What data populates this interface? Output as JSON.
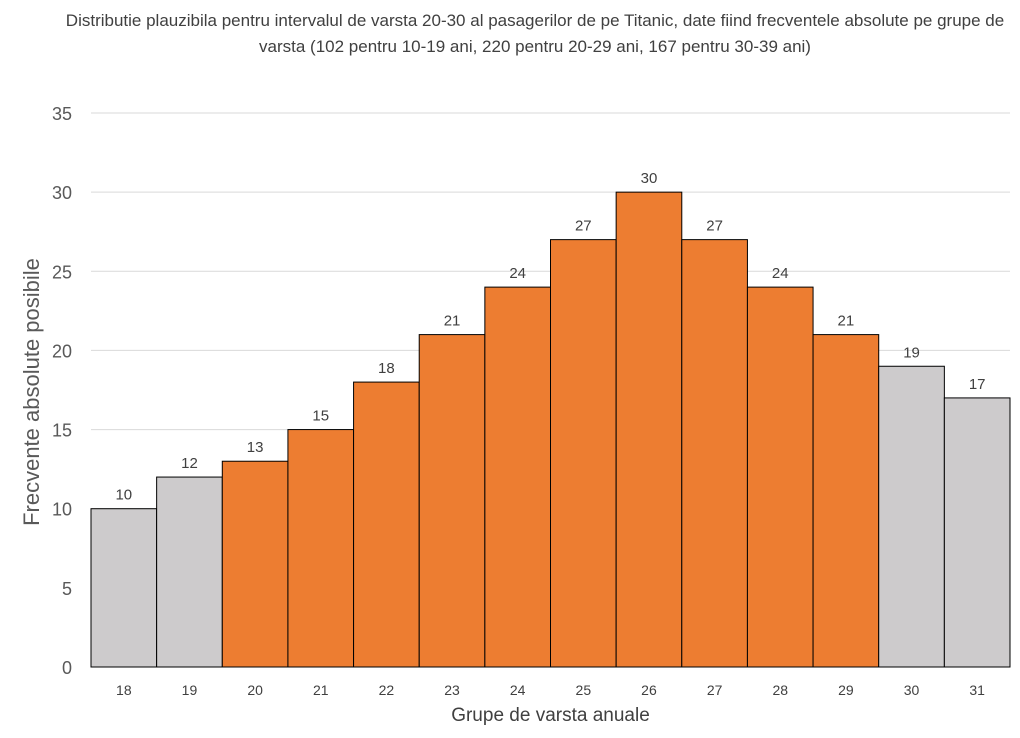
{
  "chart_data": {
    "type": "bar",
    "title": "Distributie plauzibila pentru intervalul de varsta 20-30 al pasagerilor de pe Titanic, date fiind frecventele absolute pe grupe de varsta (102 pentru 10-19 ani, 220 pentru 20-29 ani, 167 pentru 30-39 ani)",
    "xlabel": "Grupe de varsta anuale",
    "ylabel": "Frecvente absolute posibile",
    "categories": [
      "18",
      "19",
      "20",
      "21",
      "22",
      "23",
      "24",
      "25",
      "26",
      "27",
      "28",
      "29",
      "30",
      "31"
    ],
    "values": [
      10,
      12,
      13,
      15,
      18,
      21,
      24,
      27,
      30,
      27,
      24,
      21,
      19,
      17
    ],
    "highlight": [
      false,
      false,
      true,
      true,
      true,
      true,
      true,
      true,
      true,
      true,
      true,
      true,
      false,
      false
    ],
    "ylim": [
      0,
      35
    ],
    "yticks": [
      0,
      5,
      10,
      15,
      20,
      25,
      30,
      35
    ],
    "grid": true,
    "legend": "none",
    "colors": {
      "highlight": "#ED7D31",
      "other": "#CDCBCC",
      "edge": "#000000",
      "grid": "#D9D9D9",
      "text": "#404040"
    }
  }
}
